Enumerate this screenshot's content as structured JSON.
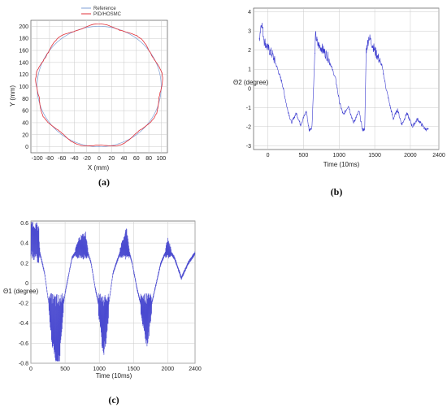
{
  "chart_data": [
    {
      "id": "a",
      "type": "line",
      "panel_label": "(a)",
      "xlabel": "X (mm)",
      "ylabel": "Y (mm)",
      "xlim": [
        -110,
        110
      ],
      "ylim": [
        -10,
        210
      ],
      "xticks": [
        -100,
        -80,
        -60,
        -40,
        -20,
        0,
        20,
        40,
        60,
        80,
        100
      ],
      "yticks": [
        0,
        20,
        40,
        60,
        80,
        100,
        120,
        140,
        160,
        180,
        200
      ],
      "grid": true,
      "legend_position": "top-center",
      "series": [
        {
          "name": "Reference",
          "color": "#7f9fd6",
          "shape": "circle",
          "center": [
            0,
            100
          ],
          "radius": 100
        },
        {
          "name": "PID/HOSMC",
          "color": "#e0303a",
          "shape": "circle",
          "center": [
            0,
            101
          ],
          "radius": 101,
          "ripple": 3
        }
      ]
    },
    {
      "id": "b",
      "type": "line",
      "panel_label": "(b)",
      "xlabel": "Time (10ms)",
      "ylabel": "Θ2 (degree)",
      "xlim": [
        -200,
        2400
      ],
      "ylim": [
        -3.2,
        4.2
      ],
      "xticks": [
        0,
        500,
        1000,
        1500,
        2000,
        2400
      ],
      "yticks": [
        -3,
        -2,
        -1,
        0,
        1,
        2,
        3,
        4
      ],
      "grid": true,
      "color": "#3a3acf",
      "period": 650,
      "key_points": [
        [
          -120,
          2.6
        ],
        [
          -90,
          3.5
        ],
        [
          -50,
          2.5
        ],
        [
          0,
          2.1
        ],
        [
          60,
          1.8
        ],
        [
          120,
          1.2
        ],
        [
          200,
          0.3
        ],
        [
          270,
          -1.0
        ],
        [
          330,
          -1.8
        ],
        [
          400,
          -1.3
        ],
        [
          460,
          -1.9
        ],
        [
          540,
          -1.2
        ],
        [
          580,
          -2.2
        ],
        [
          620,
          -2.0
        ],
        [
          670,
          2.8
        ],
        [
          700,
          2.3
        ],
        [
          760,
          2.1
        ],
        [
          850,
          1.6
        ],
        [
          950,
          0.5
        ],
        [
          1010,
          -0.8
        ],
        [
          1060,
          -1.4
        ],
        [
          1130,
          -0.9
        ],
        [
          1200,
          -1.8
        ],
        [
          1280,
          -1.2
        ],
        [
          1330,
          -2.2
        ],
        [
          1360,
          -2.1
        ],
        [
          1380,
          2.0
        ],
        [
          1420,
          2.7
        ],
        [
          1500,
          2.0
        ],
        [
          1600,
          1.2
        ],
        [
          1660,
          0.0
        ],
        [
          1720,
          -1.0
        ],
        [
          1760,
          -1.6
        ],
        [
          1820,
          -1.1
        ],
        [
          1880,
          -1.9
        ],
        [
          1950,
          -1.3
        ],
        [
          2030,
          -2.0
        ],
        [
          2100,
          -1.6
        ],
        [
          2200,
          -2.1
        ],
        [
          2260,
          -2.2
        ]
      ]
    },
    {
      "id": "c",
      "type": "line",
      "panel_label": "(c)",
      "xlabel": "Time (10ms)",
      "ylabel": "Θ1 (degree)",
      "xlim": [
        0,
        2400
      ],
      "ylim": [
        -0.8,
        0.62
      ],
      "xticks": [
        0,
        500,
        1000,
        1500,
        2000,
        2400
      ],
      "yticks": [
        -0.8,
        -0.6,
        -0.4,
        -0.2,
        0,
        0.2,
        0.4,
        0.6
      ],
      "ytick_labels": [
        "-0.8",
        "-0.6",
        "-0.4",
        "-0.2",
        "0",
        "0.2",
        "0.4",
        "0.6"
      ],
      "grid": true,
      "color": "#4a4ad0",
      "period": 650,
      "base_points": [
        [
          0,
          0.45
        ],
        [
          100,
          0.4
        ],
        [
          200,
          0.1
        ],
        [
          250,
          -0.15
        ],
        [
          300,
          -0.35
        ],
        [
          400,
          -0.55
        ],
        [
          500,
          -0.1
        ],
        [
          600,
          0.25
        ],
        [
          700,
          0.35
        ],
        [
          800,
          0.38
        ],
        [
          880,
          0.2
        ],
        [
          940,
          -0.05
        ],
        [
          1000,
          -0.25
        ],
        [
          1060,
          -0.45
        ],
        [
          1120,
          -0.3
        ],
        [
          1200,
          0.1
        ],
        [
          1300,
          0.3
        ],
        [
          1400,
          0.4
        ],
        [
          1480,
          0.2
        ],
        [
          1550,
          -0.05
        ],
        [
          1620,
          -0.25
        ],
        [
          1700,
          -0.4
        ],
        [
          1800,
          -0.1
        ],
        [
          1900,
          0.2
        ],
        [
          2000,
          0.35
        ],
        [
          2100,
          0.25
        ],
        [
          2200,
          0.05
        ],
        [
          2300,
          0.2
        ],
        [
          2400,
          0.3
        ]
      ]
    }
  ]
}
